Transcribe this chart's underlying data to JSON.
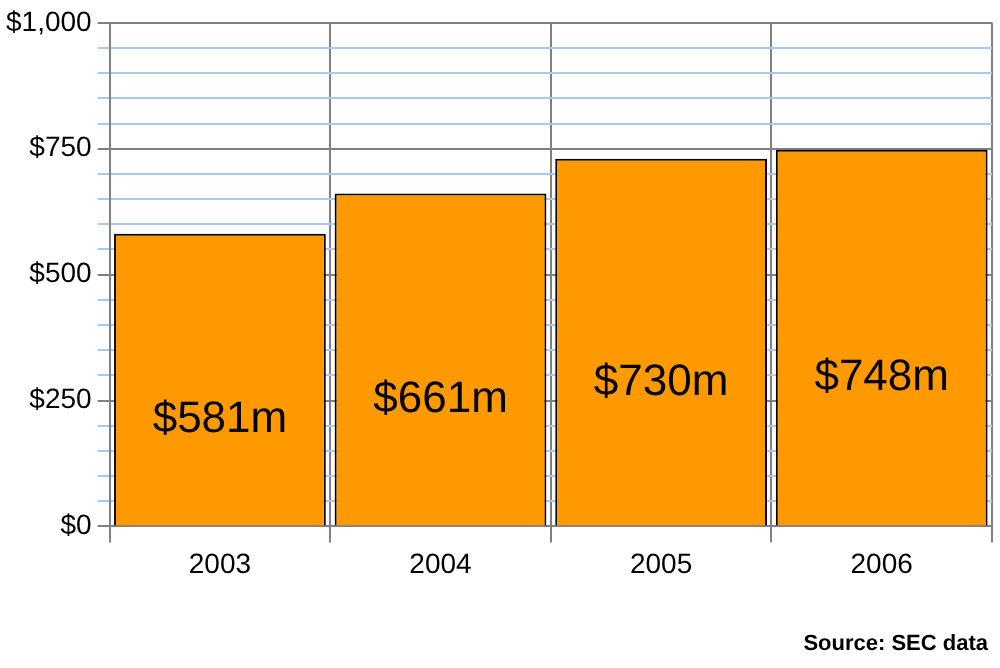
{
  "chart_data": {
    "type": "bar",
    "categories": [
      "2003",
      "2004",
      "2005",
      "2006"
    ],
    "values": [
      581,
      661,
      730,
      748
    ],
    "value_labels": [
      "$581m",
      "$661m",
      "$730m",
      "$748m"
    ],
    "color": "#ff9900",
    "ylim": [
      0,
      1000
    ],
    "yticks": [
      {
        "value": 0,
        "label": "$0"
      },
      {
        "value": 50,
        "label": null
      },
      {
        "value": 100,
        "label": null
      },
      {
        "value": 150,
        "label": null
      },
      {
        "value": 200,
        "label": null
      },
      {
        "value": 250,
        "label": "$250"
      },
      {
        "value": 300,
        "label": null
      },
      {
        "value": 350,
        "label": null
      },
      {
        "value": 400,
        "label": null
      },
      {
        "value": 450,
        "label": null
      },
      {
        "value": 500,
        "label": "$500"
      },
      {
        "value": 550,
        "label": null
      },
      {
        "value": 600,
        "label": null
      },
      {
        "value": 650,
        "label": null
      },
      {
        "value": 700,
        "label": null
      },
      {
        "value": 750,
        "label": "$750"
      },
      {
        "value": 800,
        "label": null
      },
      {
        "value": 850,
        "label": null
      },
      {
        "value": 900,
        "label": null
      },
      {
        "value": 950,
        "label": null
      },
      {
        "value": 1000,
        "label": "$1,000"
      }
    ],
    "grid": true,
    "annotations": [
      "Source: SEC data"
    ]
  }
}
